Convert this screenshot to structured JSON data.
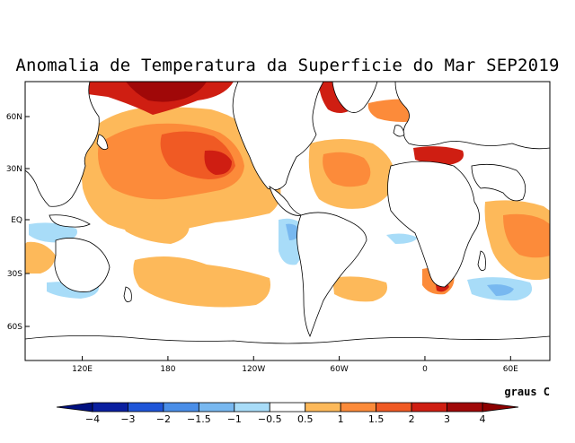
{
  "title": "Anomalia de Temperatura da Superficie do Mar SEP2019",
  "lat_ticks": [
    {
      "lat": 60,
      "label": "60N"
    },
    {
      "lat": 30,
      "label": "30N"
    },
    {
      "lat": 0,
      "label": "EQ"
    },
    {
      "lat": -30,
      "label": "30S"
    },
    {
      "lat": -60,
      "label": "60S"
    }
  ],
  "lon_ticks": [
    {
      "lon": 120,
      "label": "120E"
    },
    {
      "lon": 180,
      "label": "180"
    },
    {
      "lon": 240,
      "label": "120W"
    },
    {
      "lon": 300,
      "label": "60W"
    },
    {
      "lon": 360,
      "label": "0"
    },
    {
      "lon": 420,
      "label": "60E"
    }
  ],
  "colorbar": {
    "units": "graus C",
    "labels": [
      "−4",
      "−3",
      "−2",
      "−1.5",
      "−1",
      "−0.5",
      "0.5",
      "1",
      "1.5",
      "2",
      "3",
      "4"
    ],
    "colors": [
      "#0a1fa0",
      "#1f55d8",
      "#4a8ee8",
      "#78b8f0",
      "#a8dcf8",
      "#ffffff",
      "#fdb95a",
      "#fc8b3a",
      "#f05a24",
      "#cf1e12",
      "#a00808"
    ],
    "under_color": "#001080",
    "over_color": "#8c0000"
  },
  "colors": {
    "coast": "#000000",
    "frame": "#000000"
  }
}
